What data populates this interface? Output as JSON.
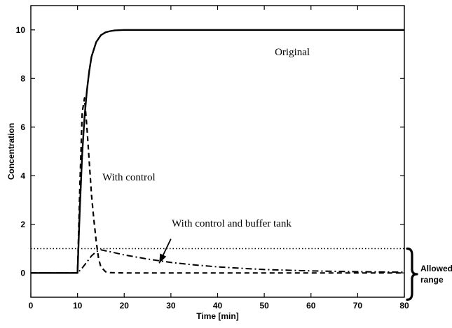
{
  "chart_data": {
    "type": "line",
    "title": "",
    "xlabel": "Time [min]",
    "ylabel": "Concentration",
    "xlim": [
      0,
      80
    ],
    "ylim": [
      -1,
      11
    ],
    "xticks": [
      0,
      10,
      20,
      30,
      40,
      50,
      60,
      70,
      80
    ],
    "yticks": [
      0,
      2,
      4,
      6,
      8,
      10
    ],
    "grid": false,
    "legend": "none",
    "series": [
      {
        "name": "Original",
        "style": "solid",
        "x": [
          0,
          10,
          10.5,
          11,
          11.5,
          12,
          12.5,
          13,
          14,
          15,
          16,
          17,
          18,
          20,
          22,
          80
        ],
        "y": [
          0,
          0,
          2.7,
          4.9,
          6.4,
          7.5,
          8.3,
          8.9,
          9.5,
          9.78,
          9.9,
          9.95,
          9.98,
          10,
          10,
          10
        ]
      },
      {
        "name": "With control",
        "style": "dashed",
        "x": [
          0,
          10,
          10.5,
          11,
          11.5,
          12,
          12.5,
          13,
          13.5,
          14,
          14.5,
          15,
          16,
          17,
          20,
          80
        ],
        "y": [
          0,
          0,
          3.6,
          6.6,
          7.2,
          6.0,
          4.6,
          3.2,
          2.2,
          1.3,
          0.6,
          0.25,
          0.05,
          0.01,
          0,
          0
        ]
      },
      {
        "name": "With control and buffer tank",
        "style": "dashdot",
        "x": [
          0,
          10,
          11,
          12,
          13,
          14,
          15,
          17,
          20,
          25,
          30,
          35,
          40,
          45,
          50,
          55,
          60,
          65,
          70,
          75,
          80
        ],
        "y": [
          0,
          0,
          0.2,
          0.45,
          0.7,
          0.88,
          0.95,
          0.87,
          0.74,
          0.57,
          0.43,
          0.33,
          0.25,
          0.19,
          0.14,
          0.11,
          0.085,
          0.065,
          0.05,
          0.04,
          0.03
        ]
      }
    ],
    "reference_lines": [
      {
        "type": "horizontal",
        "y": 1,
        "style": "dotted"
      }
    ],
    "annotations": [
      {
        "text": "Original",
        "x": 56,
        "y": 8.95
      },
      {
        "text": "With control",
        "x": 21,
        "y": 3.8
      },
      {
        "text": "With control and buffer tank",
        "x": 43,
        "y": 1.9
      }
    ],
    "arrow": {
      "from": [
        30,
        1.4
      ],
      "to": [
        27.5,
        0.4
      ]
    },
    "range_brace": {
      "y_from": -1.1,
      "y_to": 1.0,
      "label_line1": "Allowed",
      "label_line2": "range"
    }
  }
}
